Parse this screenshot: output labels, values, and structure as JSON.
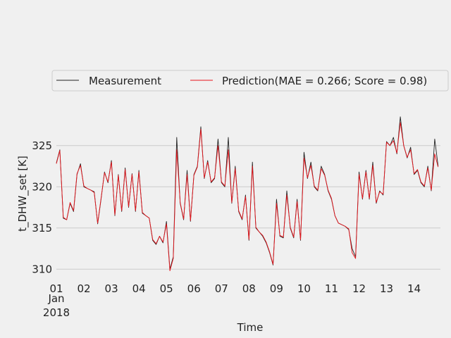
{
  "chart_data": {
    "type": "line",
    "xlabel": "Time",
    "ylabel": "t_DHW_set [K]",
    "ylim": [
      309,
      329
    ],
    "xlim": [
      "2018-01-01T00:00",
      "2018-01-14T23:00"
    ],
    "yticks": [
      310,
      315,
      320,
      325
    ],
    "xticks": [
      "01",
      "02",
      "03",
      "04",
      "05",
      "06",
      "07",
      "08",
      "09",
      "10",
      "11",
      "12",
      "13",
      "14"
    ],
    "xtick_sublabels": [
      "Jan",
      "2018"
    ],
    "grid": "horizontal",
    "legend_placement": "top",
    "x": [
      "2018-01-01T00:00",
      "2018-01-01T03:00",
      "2018-01-01T06:00",
      "2018-01-01T09:00",
      "2018-01-01T12:00",
      "2018-01-01T15:00",
      "2018-01-01T18:00",
      "2018-01-01T21:00",
      "2018-01-02T00:00",
      "2018-01-02T03:00",
      "2018-01-02T06:00",
      "2018-01-02T09:00",
      "2018-01-02T12:00",
      "2018-01-02T15:00",
      "2018-01-02T18:00",
      "2018-01-02T21:00",
      "2018-01-03T00:00",
      "2018-01-03T03:00",
      "2018-01-03T06:00",
      "2018-01-03T09:00",
      "2018-01-03T12:00",
      "2018-01-03T15:00",
      "2018-01-03T18:00",
      "2018-01-03T21:00",
      "2018-01-04T00:00",
      "2018-01-04T03:00",
      "2018-01-04T06:00",
      "2018-01-04T09:00",
      "2018-01-04T12:00",
      "2018-01-04T15:00",
      "2018-01-04T18:00",
      "2018-01-04T21:00",
      "2018-01-05T00:00",
      "2018-01-05T03:00",
      "2018-01-05T06:00",
      "2018-01-05T09:00",
      "2018-01-05T12:00",
      "2018-01-05T15:00",
      "2018-01-05T18:00",
      "2018-01-05T21:00",
      "2018-01-06T00:00",
      "2018-01-06T03:00",
      "2018-01-06T06:00",
      "2018-01-06T09:00",
      "2018-01-06T12:00",
      "2018-01-06T15:00",
      "2018-01-06T18:00",
      "2018-01-06T21:00",
      "2018-01-07T00:00",
      "2018-01-07T03:00",
      "2018-01-07T06:00",
      "2018-01-07T09:00",
      "2018-01-07T12:00",
      "2018-01-07T15:00",
      "2018-01-07T18:00",
      "2018-01-07T21:00",
      "2018-01-08T00:00",
      "2018-01-08T03:00",
      "2018-01-08T06:00",
      "2018-01-08T09:00",
      "2018-01-08T12:00",
      "2018-01-08T15:00",
      "2018-01-08T18:00",
      "2018-01-08T21:00",
      "2018-01-09T00:00",
      "2018-01-09T03:00",
      "2018-01-09T06:00",
      "2018-01-09T09:00",
      "2018-01-09T12:00",
      "2018-01-09T15:00",
      "2018-01-09T18:00",
      "2018-01-09T21:00",
      "2018-01-10T00:00",
      "2018-01-10T03:00",
      "2018-01-10T06:00",
      "2018-01-10T09:00",
      "2018-01-10T12:00",
      "2018-01-10T15:00",
      "2018-01-10T18:00",
      "2018-01-10T21:00",
      "2018-01-11T00:00",
      "2018-01-11T03:00",
      "2018-01-11T06:00",
      "2018-01-11T09:00",
      "2018-01-11T12:00",
      "2018-01-11T15:00",
      "2018-01-11T18:00",
      "2018-01-11T21:00",
      "2018-01-12T00:00",
      "2018-01-12T03:00",
      "2018-01-12T06:00",
      "2018-01-12T09:00",
      "2018-01-12T12:00",
      "2018-01-12T15:00",
      "2018-01-12T18:00",
      "2018-01-12T21:00",
      "2018-01-13T00:00",
      "2018-01-13T03:00",
      "2018-01-13T06:00",
      "2018-01-13T09:00",
      "2018-01-13T12:00",
      "2018-01-13T15:00",
      "2018-01-13T18:00",
      "2018-01-13T21:00",
      "2018-01-14T00:00",
      "2018-01-14T03:00",
      "2018-01-14T06:00",
      "2018-01-14T09:00",
      "2018-01-14T12:00",
      "2018-01-14T15:00",
      "2018-01-14T18:00",
      "2018-01-14T21:00"
    ],
    "series": [
      {
        "name": "Measurement",
        "color": "#222222",
        "values": [
          322.9,
          324.5,
          316.2,
          316.0,
          318.0,
          317.0,
          321.5,
          322.8,
          320.0,
          319.8,
          319.6,
          319.4,
          315.5,
          318.5,
          321.8,
          320.5,
          323.2,
          316.5,
          321.5,
          317.0,
          322.3,
          317.5,
          321.6,
          317.0,
          322.0,
          316.8,
          316.5,
          316.2,
          313.5,
          313.0,
          314.0,
          313.2,
          315.8,
          310.0,
          311.5,
          326.0,
          318.0,
          316.0,
          322.0,
          315.8,
          321.5,
          322.5,
          327.3,
          321.0,
          323.2,
          320.5,
          321.0,
          325.8,
          320.5,
          320.0,
          326.0,
          318.0,
          322.5,
          317.0,
          316.0,
          319.0,
          313.5,
          323.0,
          315.0,
          314.5,
          314.0,
          313.2,
          312.0,
          310.5,
          318.5,
          314.0,
          313.8,
          319.5,
          315.0,
          313.8,
          318.5,
          313.5,
          324.2,
          321.0,
          323.0,
          320.0,
          319.5,
          322.5,
          321.5,
          319.5,
          318.5,
          316.5,
          315.6,
          315.4,
          315.2,
          314.8,
          312.5,
          311.5,
          321.8,
          318.5,
          322.0,
          318.5,
          323.0,
          318.0,
          319.5,
          319.0,
          325.5,
          325.0,
          326.0,
          324.0,
          328.5,
          325.0,
          323.5,
          324.8,
          321.5,
          322.0,
          320.5,
          320.0,
          322.5,
          319.5,
          325.8,
          322.5
        ]
      },
      {
        "name": "Prediction(MAE = 0.266; Score = 0.98)",
        "color": "#e8141b",
        "values": [
          322.8,
          324.4,
          316.3,
          316.0,
          318.1,
          317.1,
          321.6,
          322.6,
          320.1,
          319.8,
          319.6,
          319.3,
          315.6,
          318.6,
          321.7,
          320.6,
          323.0,
          316.6,
          321.4,
          317.1,
          322.1,
          317.6,
          321.5,
          317.1,
          321.8,
          316.9,
          316.5,
          316.2,
          313.6,
          313.1,
          314.0,
          313.3,
          315.5,
          309.8,
          311.3,
          324.5,
          318.1,
          316.1,
          321.5,
          315.9,
          321.4,
          322.4,
          327.0,
          321.1,
          323.0,
          320.6,
          321.1,
          325.0,
          320.6,
          320.1,
          324.5,
          318.1,
          322.2,
          317.1,
          316.1,
          318.8,
          313.6,
          322.5,
          315.1,
          314.5,
          314.1,
          313.3,
          312.1,
          310.6,
          318.0,
          314.1,
          313.9,
          319.0,
          315.1,
          313.9,
          318.2,
          313.6,
          323.5,
          321.1,
          322.6,
          320.1,
          319.6,
          322.2,
          321.4,
          319.6,
          318.6,
          316.5,
          315.6,
          315.4,
          315.2,
          314.9,
          312.0,
          311.3,
          321.5,
          318.6,
          321.8,
          318.6,
          322.6,
          318.1,
          319.4,
          319.1,
          325.4,
          325.0,
          325.6,
          324.1,
          327.8,
          325.0,
          323.6,
          324.5,
          321.6,
          322.1,
          320.6,
          320.1,
          322.3,
          319.6,
          324.0,
          322.4
        ]
      }
    ]
  }
}
